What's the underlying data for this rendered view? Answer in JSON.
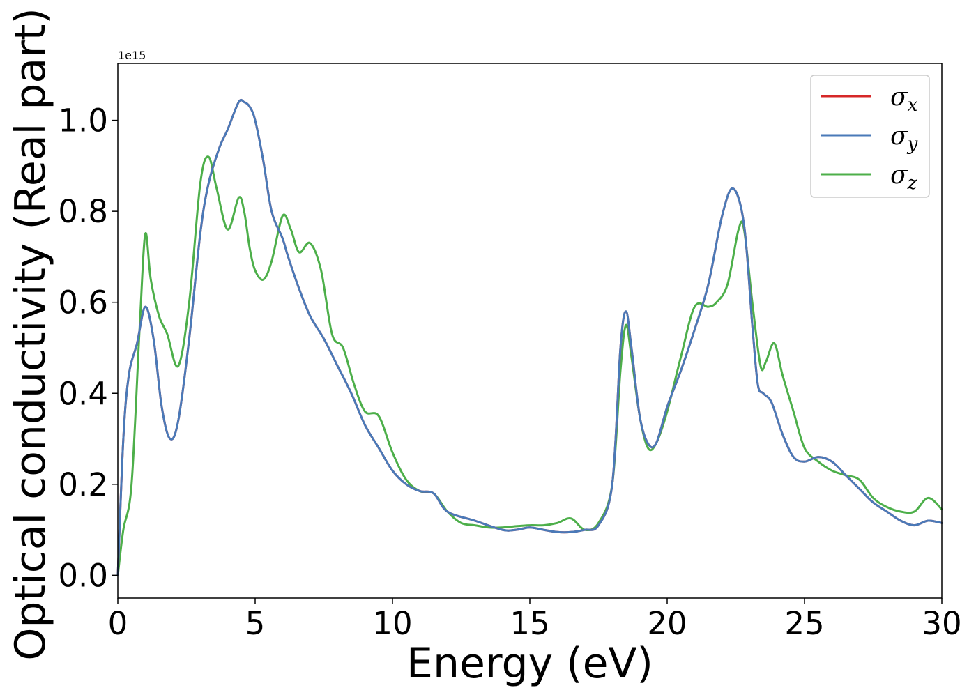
{
  "chart_data": {
    "type": "line",
    "title": "",
    "xlabel": "Energy (eV)",
    "ylabel": "Optical conductivity (Real part)",
    "offset_text": "1e15",
    "xlim": [
      0,
      30
    ],
    "ylim": [
      -0.05,
      1.125
    ],
    "y_scale_factor": 1000000000000000.0,
    "xticks": [
      0,
      5,
      10,
      15,
      20,
      25,
      30
    ],
    "xtick_labels": [
      "0",
      "5",
      "10",
      "15",
      "20",
      "25",
      "30"
    ],
    "yticks": [
      0.0,
      0.2,
      0.4,
      0.6,
      0.8,
      1.0
    ],
    "ytick_labels": [
      "0.0",
      "0.2",
      "0.4",
      "0.6",
      "0.8",
      "1.0"
    ],
    "grid": false,
    "legend_position": "top-right",
    "series": [
      {
        "name": "σx",
        "name_base": "σ",
        "name_sub": "x",
        "color": "#d62728",
        "x": [
          0,
          0.2,
          0.4,
          0.7,
          1.0,
          1.3,
          1.6,
          1.9,
          2.2,
          2.6,
          3.0,
          3.3,
          3.7,
          4.0,
          4.4,
          4.6,
          4.8,
          5.0,
          5.3,
          5.6,
          6.0,
          6.2,
          6.6,
          7.0,
          7.5,
          8.0,
          8.5,
          9.0,
          9.5,
          10.0,
          10.5,
          11.0,
          11.5,
          12.0,
          13.0,
          14.0,
          14.5,
          15.0,
          15.5,
          16.0,
          16.5,
          17.0,
          17.5,
          18.0,
          18.3,
          18.5,
          18.7,
          19.0,
          19.3,
          19.6,
          20.0,
          20.5,
          21.0,
          21.5,
          22.0,
          22.4,
          22.8,
          23.1,
          23.3,
          23.5,
          23.8,
          24.2,
          24.6,
          25.0,
          25.5,
          26.0,
          26.5,
          27.0,
          27.5,
          28.0,
          28.5,
          29.0,
          29.5,
          30.0
        ],
        "y": [
          0.0,
          0.3,
          0.44,
          0.51,
          0.59,
          0.52,
          0.37,
          0.3,
          0.34,
          0.52,
          0.75,
          0.86,
          0.94,
          0.98,
          1.04,
          1.04,
          1.03,
          1.0,
          0.91,
          0.8,
          0.74,
          0.7,
          0.63,
          0.57,
          0.52,
          0.46,
          0.4,
          0.33,
          0.28,
          0.23,
          0.2,
          0.185,
          0.18,
          0.14,
          0.12,
          0.1,
          0.1,
          0.105,
          0.1,
          0.095,
          0.095,
          0.1,
          0.11,
          0.2,
          0.5,
          0.58,
          0.5,
          0.35,
          0.29,
          0.29,
          0.37,
          0.45,
          0.54,
          0.64,
          0.79,
          0.85,
          0.77,
          0.55,
          0.42,
          0.4,
          0.38,
          0.31,
          0.26,
          0.25,
          0.26,
          0.25,
          0.22,
          0.19,
          0.16,
          0.14,
          0.12,
          0.11,
          0.12,
          0.115
        ]
      },
      {
        "name": "σy",
        "name_base": "σ",
        "name_sub": "y",
        "color": "#4a7ab8",
        "x": [
          0,
          0.2,
          0.4,
          0.7,
          1.0,
          1.3,
          1.6,
          1.9,
          2.2,
          2.6,
          3.0,
          3.3,
          3.7,
          4.0,
          4.4,
          4.6,
          4.8,
          5.0,
          5.3,
          5.6,
          6.0,
          6.2,
          6.6,
          7.0,
          7.5,
          8.0,
          8.5,
          9.0,
          9.5,
          10.0,
          10.5,
          11.0,
          11.5,
          12.0,
          13.0,
          14.0,
          14.5,
          15.0,
          15.5,
          16.0,
          16.5,
          17.0,
          17.5,
          18.0,
          18.3,
          18.5,
          18.7,
          19.0,
          19.3,
          19.6,
          20.0,
          20.5,
          21.0,
          21.5,
          22.0,
          22.4,
          22.8,
          23.1,
          23.3,
          23.5,
          23.8,
          24.2,
          24.6,
          25.0,
          25.5,
          26.0,
          26.5,
          27.0,
          27.5,
          28.0,
          28.5,
          29.0,
          29.5,
          30.0
        ],
        "y": [
          0.0,
          0.3,
          0.44,
          0.51,
          0.59,
          0.52,
          0.37,
          0.3,
          0.34,
          0.52,
          0.75,
          0.86,
          0.94,
          0.98,
          1.04,
          1.04,
          1.03,
          1.0,
          0.91,
          0.8,
          0.74,
          0.7,
          0.63,
          0.57,
          0.52,
          0.46,
          0.4,
          0.33,
          0.28,
          0.23,
          0.2,
          0.185,
          0.18,
          0.14,
          0.12,
          0.1,
          0.1,
          0.105,
          0.1,
          0.095,
          0.095,
          0.1,
          0.11,
          0.2,
          0.5,
          0.58,
          0.5,
          0.35,
          0.29,
          0.29,
          0.37,
          0.45,
          0.54,
          0.64,
          0.79,
          0.85,
          0.77,
          0.55,
          0.42,
          0.4,
          0.38,
          0.31,
          0.26,
          0.25,
          0.26,
          0.25,
          0.22,
          0.19,
          0.16,
          0.14,
          0.12,
          0.11,
          0.12,
          0.115
        ]
      },
      {
        "name": "σz",
        "name_base": "σ",
        "name_sub": "z",
        "color": "#4daf4a",
        "x": [
          0,
          0.2,
          0.5,
          0.8,
          1.0,
          1.2,
          1.5,
          1.8,
          2.2,
          2.6,
          3.0,
          3.3,
          3.6,
          4.0,
          4.4,
          4.6,
          4.8,
          5.0,
          5.3,
          5.6,
          6.0,
          6.3,
          6.6,
          7.0,
          7.4,
          7.8,
          8.2,
          8.6,
          9.0,
          9.5,
          10.0,
          10.5,
          11.0,
          11.5,
          12.0,
          12.5,
          13.0,
          13.5,
          14.0,
          14.5,
          15.0,
          15.5,
          16.0,
          16.5,
          17.0,
          17.5,
          18.0,
          18.3,
          18.5,
          18.7,
          19.0,
          19.3,
          19.6,
          20.0,
          20.5,
          21.0,
          21.5,
          21.8,
          22.2,
          22.6,
          22.8,
          23.1,
          23.4,
          23.6,
          23.9,
          24.2,
          24.6,
          25.0,
          25.5,
          26.0,
          26.5,
          27.0,
          27.5,
          28.0,
          28.5,
          29.0,
          29.5,
          30.0
        ],
        "y": [
          0.0,
          0.1,
          0.2,
          0.55,
          0.75,
          0.65,
          0.57,
          0.53,
          0.46,
          0.6,
          0.86,
          0.92,
          0.85,
          0.76,
          0.83,
          0.8,
          0.72,
          0.67,
          0.65,
          0.69,
          0.79,
          0.76,
          0.71,
          0.73,
          0.67,
          0.53,
          0.5,
          0.42,
          0.36,
          0.35,
          0.27,
          0.21,
          0.185,
          0.18,
          0.14,
          0.115,
          0.11,
          0.105,
          0.105,
          0.108,
          0.11,
          0.11,
          0.115,
          0.125,
          0.1,
          0.115,
          0.2,
          0.45,
          0.55,
          0.48,
          0.35,
          0.28,
          0.29,
          0.36,
          0.48,
          0.59,
          0.59,
          0.6,
          0.64,
          0.76,
          0.76,
          0.6,
          0.46,
          0.47,
          0.51,
          0.44,
          0.36,
          0.28,
          0.25,
          0.23,
          0.22,
          0.21,
          0.17,
          0.15,
          0.14,
          0.14,
          0.17,
          0.145
        ]
      }
    ]
  }
}
